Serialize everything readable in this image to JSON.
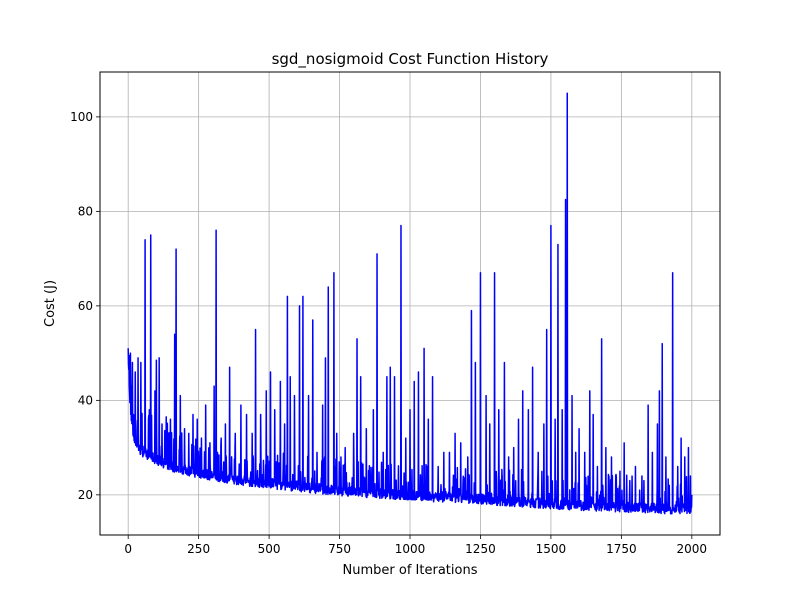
{
  "chart_data": {
    "type": "line",
    "title": "sgd_nosigmoid Cost Function History",
    "xlabel": "Number of Iterations",
    "ylabel": "Cost (J)",
    "xlim": [
      -100,
      2100
    ],
    "ylim": [
      11.5,
      109.5
    ],
    "xticks": [
      0,
      250,
      500,
      750,
      1000,
      1250,
      1500,
      1750,
      2000
    ],
    "yticks": [
      20,
      40,
      60,
      80,
      100
    ],
    "grid": true,
    "series": [
      {
        "color": "#0000ff",
        "baseline": [
          [
            0,
            49
          ],
          [
            5,
            40
          ],
          [
            10,
            35
          ],
          [
            20,
            31
          ],
          [
            40,
            28.5
          ],
          [
            80,
            27
          ],
          [
            150,
            25
          ],
          [
            250,
            23.5
          ],
          [
            400,
            22
          ],
          [
            500,
            21.3
          ],
          [
            750,
            19.8
          ],
          [
            1000,
            18.8
          ],
          [
            1250,
            18
          ],
          [
            1500,
            17
          ],
          [
            1750,
            16.3
          ],
          [
            2000,
            15.8
          ]
        ],
        "spikes": [
          [
            3,
            49.5
          ],
          [
            8,
            50
          ],
          [
            15,
            48
          ],
          [
            25,
            46
          ],
          [
            35,
            49
          ],
          [
            45,
            48
          ],
          [
            60,
            74
          ],
          [
            75,
            38
          ],
          [
            80,
            75
          ],
          [
            95,
            42
          ],
          [
            100,
            48.5
          ],
          [
            110,
            49
          ],
          [
            120,
            35
          ],
          [
            135,
            36.5
          ],
          [
            150,
            36
          ],
          [
            165,
            54
          ],
          [
            170,
            72
          ],
          [
            185,
            41
          ],
          [
            200,
            34
          ],
          [
            215,
            33
          ],
          [
            230,
            37
          ],
          [
            245,
            36
          ],
          [
            260,
            32
          ],
          [
            275,
            39
          ],
          [
            290,
            31
          ],
          [
            305,
            43
          ],
          [
            312,
            76
          ],
          [
            330,
            32
          ],
          [
            345,
            35
          ],
          [
            360,
            47
          ],
          [
            380,
            33
          ],
          [
            400,
            39
          ],
          [
            420,
            37
          ],
          [
            440,
            33
          ],
          [
            452,
            55
          ],
          [
            470,
            37
          ],
          [
            490,
            42
          ],
          [
            505,
            46
          ],
          [
            520,
            38
          ],
          [
            540,
            44
          ],
          [
            555,
            35
          ],
          [
            565,
            62
          ],
          [
            575,
            45
          ],
          [
            590,
            41
          ],
          [
            608,
            60
          ],
          [
            620,
            62
          ],
          [
            640,
            41
          ],
          [
            655,
            57
          ],
          [
            670,
            29
          ],
          [
            690,
            39
          ],
          [
            700,
            49
          ],
          [
            710,
            64
          ],
          [
            730,
            67
          ],
          [
            740,
            33
          ],
          [
            755,
            28
          ],
          [
            770,
            30
          ],
          [
            800,
            33
          ],
          [
            812,
            53
          ],
          [
            825,
            45
          ],
          [
            845,
            34
          ],
          [
            870,
            38
          ],
          [
            883,
            71
          ],
          [
            905,
            29
          ],
          [
            918,
            45
          ],
          [
            930,
            47
          ],
          [
            945,
            45
          ],
          [
            968,
            77
          ],
          [
            985,
            32
          ],
          [
            1000,
            38
          ],
          [
            1015,
            44
          ],
          [
            1030,
            46
          ],
          [
            1050,
            51
          ],
          [
            1065,
            36
          ],
          [
            1080,
            45
          ],
          [
            1100,
            26
          ],
          [
            1120,
            29
          ],
          [
            1140,
            29
          ],
          [
            1160,
            33
          ],
          [
            1180,
            31
          ],
          [
            1205,
            28
          ],
          [
            1218,
            59
          ],
          [
            1232,
            48
          ],
          [
            1250,
            67
          ],
          [
            1270,
            41
          ],
          [
            1283,
            35
          ],
          [
            1300,
            67
          ],
          [
            1315,
            38
          ],
          [
            1335,
            48
          ],
          [
            1350,
            28
          ],
          [
            1368,
            30
          ],
          [
            1385,
            36
          ],
          [
            1400,
            42
          ],
          [
            1420,
            38
          ],
          [
            1435,
            47
          ],
          [
            1455,
            29
          ],
          [
            1475,
            35
          ],
          [
            1485,
            55
          ],
          [
            1500,
            77
          ],
          [
            1515,
            36
          ],
          [
            1525,
            73
          ],
          [
            1540,
            38
          ],
          [
            1552,
            82.5
          ],
          [
            1558,
            105
          ],
          [
            1575,
            41
          ],
          [
            1588,
            29
          ],
          [
            1600,
            34
          ],
          [
            1620,
            29
          ],
          [
            1638,
            42
          ],
          [
            1650,
            37
          ],
          [
            1665,
            26
          ],
          [
            1680,
            53
          ],
          [
            1695,
            30
          ],
          [
            1715,
            28
          ],
          [
            1730,
            24
          ],
          [
            1745,
            25
          ],
          [
            1760,
            31
          ],
          [
            1780,
            23
          ],
          [
            1800,
            26
          ],
          [
            1815,
            21
          ],
          [
            1830,
            23
          ],
          [
            1845,
            39
          ],
          [
            1860,
            29
          ],
          [
            1878,
            35
          ],
          [
            1885,
            42
          ],
          [
            1895,
            52
          ],
          [
            1908,
            28
          ],
          [
            1920,
            22
          ],
          [
            1932,
            67
          ],
          [
            1950,
            26
          ],
          [
            1962,
            32
          ],
          [
            1975,
            28
          ],
          [
            1988,
            30
          ],
          [
            1995,
            24
          ],
          [
            2000,
            20
          ]
        ]
      }
    ]
  }
}
